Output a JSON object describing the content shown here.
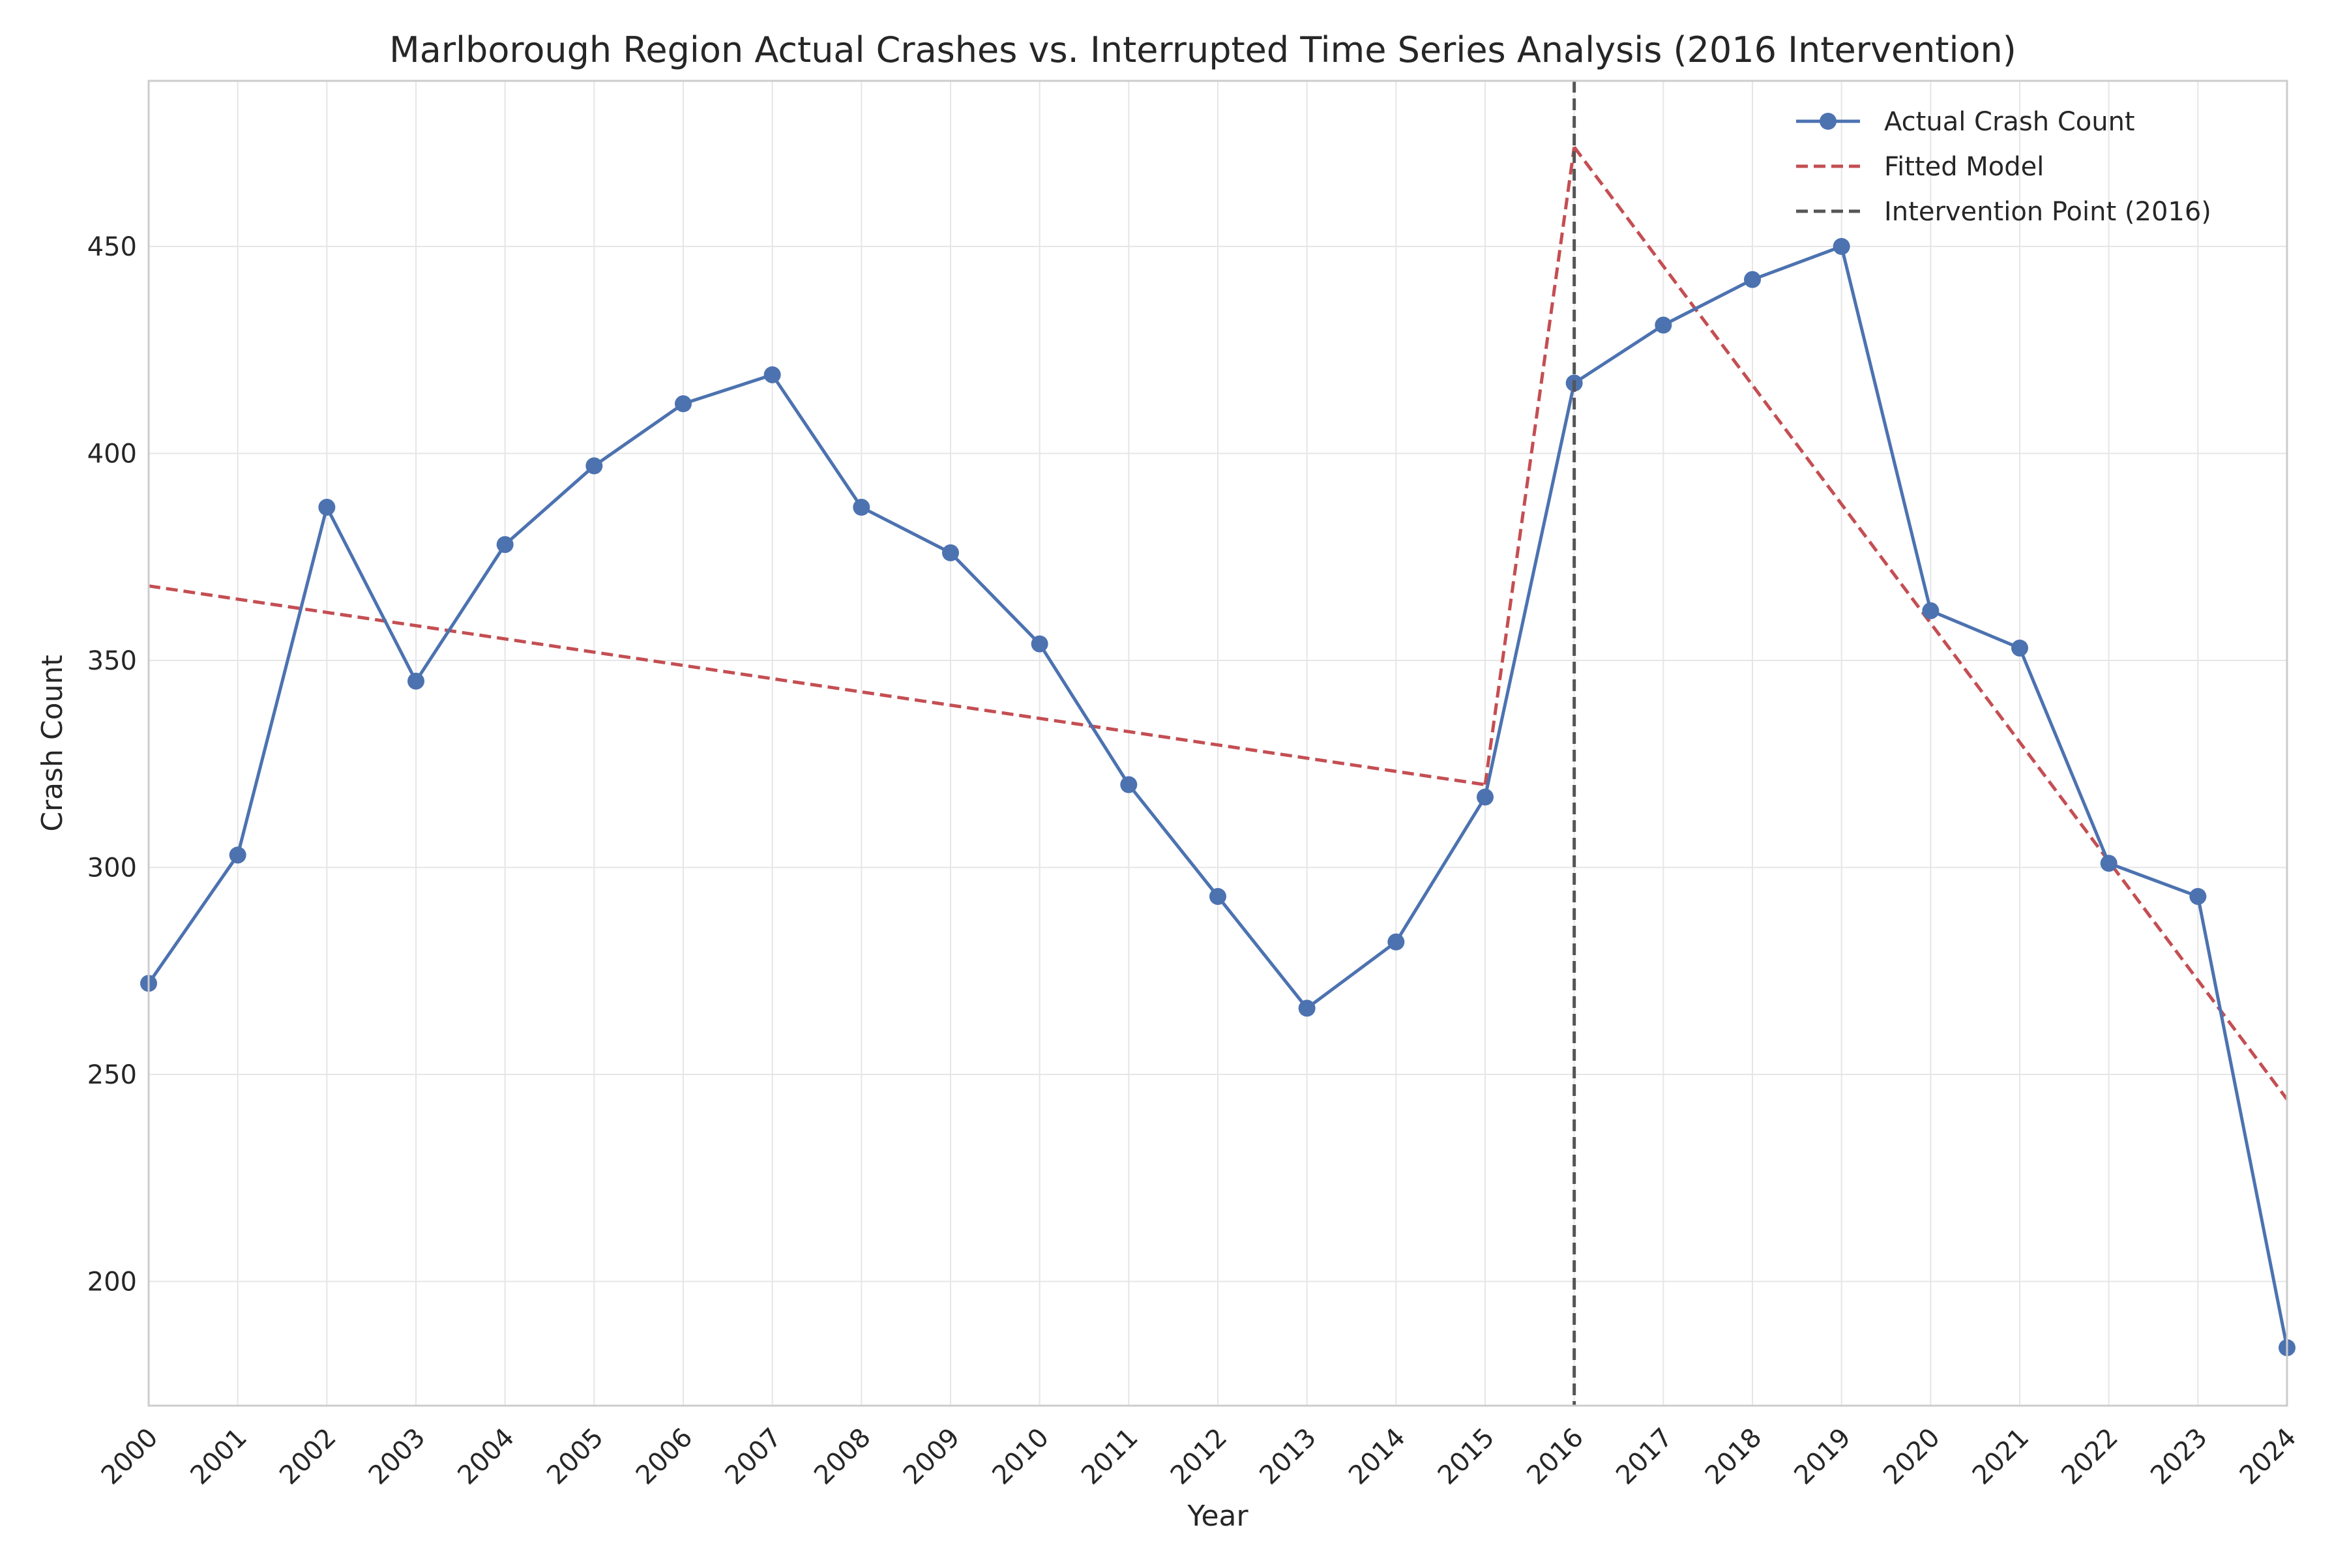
{
  "chart_data": {
    "type": "line",
    "title": "Marlborough Region Actual Crashes vs. Interrupted Time Series Analysis (2016 Intervention)",
    "xlabel": "Year",
    "ylabel": "Crash Count",
    "xlim": [
      2000,
      2024
    ],
    "ylim": [
      170,
      490
    ],
    "x_ticks": [
      "2000",
      "2001",
      "2002",
      "2003",
      "2004",
      "2005",
      "2006",
      "2007",
      "2008",
      "2009",
      "2010",
      "2011",
      "2012",
      "2013",
      "2014",
      "2015",
      "2016",
      "2017",
      "2018",
      "2019",
      "2020",
      "2021",
      "2022",
      "2023",
      "2024"
    ],
    "y_ticks": [
      200,
      250,
      300,
      350,
      400,
      450
    ],
    "grid": true,
    "legend_position": "top-right",
    "series": [
      {
        "name": "Actual Crash Count",
        "style": "solid-with-markers",
        "color": "#4C72B0",
        "x": [
          2000,
          2001,
          2002,
          2003,
          2004,
          2005,
          2006,
          2007,
          2008,
          2009,
          2010,
          2011,
          2012,
          2013,
          2014,
          2015,
          2016,
          2017,
          2018,
          2019,
          2020,
          2021,
          2022,
          2023,
          2024
        ],
        "y": [
          272,
          303,
          387,
          345,
          378,
          397,
          412,
          419,
          387,
          376,
          354,
          320,
          293,
          266,
          282,
          317,
          417,
          431,
          442,
          450,
          362,
          353,
          301,
          293,
          184
        ]
      },
      {
        "name": "Fitted Model",
        "style": "dashed",
        "color": "#C44E52",
        "segments": [
          {
            "x": [
              2000,
              2015
            ],
            "y": [
              368,
              320
            ]
          },
          {
            "x": [
              2015,
              2016
            ],
            "y": [
              320,
              474
            ]
          },
          {
            "x": [
              2016,
              2024
            ],
            "y": [
              474,
              244
            ]
          }
        ]
      }
    ],
    "annotations": [
      {
        "name": "Intervention Point (2016)",
        "type": "vertical-line",
        "style": "dashed",
        "color": "#555555",
        "x": 2016
      }
    ]
  }
}
